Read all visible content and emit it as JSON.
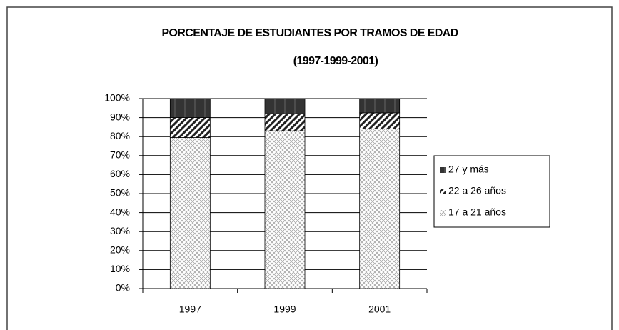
{
  "chart_data": {
    "type": "stacked_bar",
    "title": "PORCENTAJE DE ESTUDIANTES POR TRAMOS DE EDAD",
    "subtitle": "(1997-1999-2001)",
    "categories": [
      "1997",
      "1999",
      "2001"
    ],
    "series": [
      {
        "name": "17 a 21 años",
        "color": "#9a9a9a",
        "pattern": "crosshatch",
        "values": [
          79.5,
          83,
          84
        ]
      },
      {
        "name": "22 a 26 años",
        "color": "#222222",
        "pattern": "diagonal",
        "values": [
          10.5,
          9,
          8.5
        ]
      },
      {
        "name": "27 y más",
        "color": "#333333",
        "pattern": "solid",
        "values": [
          10,
          8,
          7.5
        ]
      }
    ],
    "ylim": [
      0,
      100
    ],
    "yticks": [
      {
        "value": 0,
        "label": "0%"
      },
      {
        "value": 10,
        "label": "10%"
      },
      {
        "value": 20,
        "label": "20%"
      },
      {
        "value": 30,
        "label": "30%"
      },
      {
        "value": 40,
        "label": "40%"
      },
      {
        "value": 50,
        "label": "50%"
      },
      {
        "value": 60,
        "label": "60%"
      },
      {
        "value": 70,
        "label": "70%"
      },
      {
        "value": 80,
        "label": "80%"
      },
      {
        "value": 90,
        "label": "90%"
      },
      {
        "value": 100,
        "label": "100%"
      }
    ],
    "grid": true,
    "legend": "right"
  }
}
